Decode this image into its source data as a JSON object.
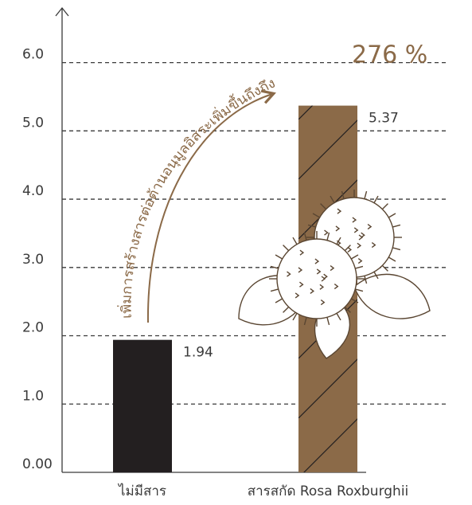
{
  "chart_data": {
    "type": "bar",
    "categories": [
      "ไม่มีสาร",
      "สารสกัด Rosa Roxburghii"
    ],
    "values": [
      1.94,
      5.37
    ],
    "colors": [
      "#231f20",
      "#8b6a48"
    ],
    "ylim": [
      0,
      6.8
    ],
    "yticks": [
      {
        "value": 0,
        "label": "0.00"
      },
      {
        "value": 1,
        "label": "1.0"
      },
      {
        "value": 2,
        "label": "2.0"
      },
      {
        "value": 3,
        "label": "3.0"
      },
      {
        "value": 4,
        "label": "4.0"
      },
      {
        "value": 5,
        "label": "5.0"
      },
      {
        "value": 6,
        "label": "6.0"
      }
    ],
    "grid": true,
    "annotation": "เพิ่มการสร้างสารต่อต้านอนุมูลอิสระเพิ่มขึ้นถึงถึง",
    "annotation_value": "276 %"
  }
}
